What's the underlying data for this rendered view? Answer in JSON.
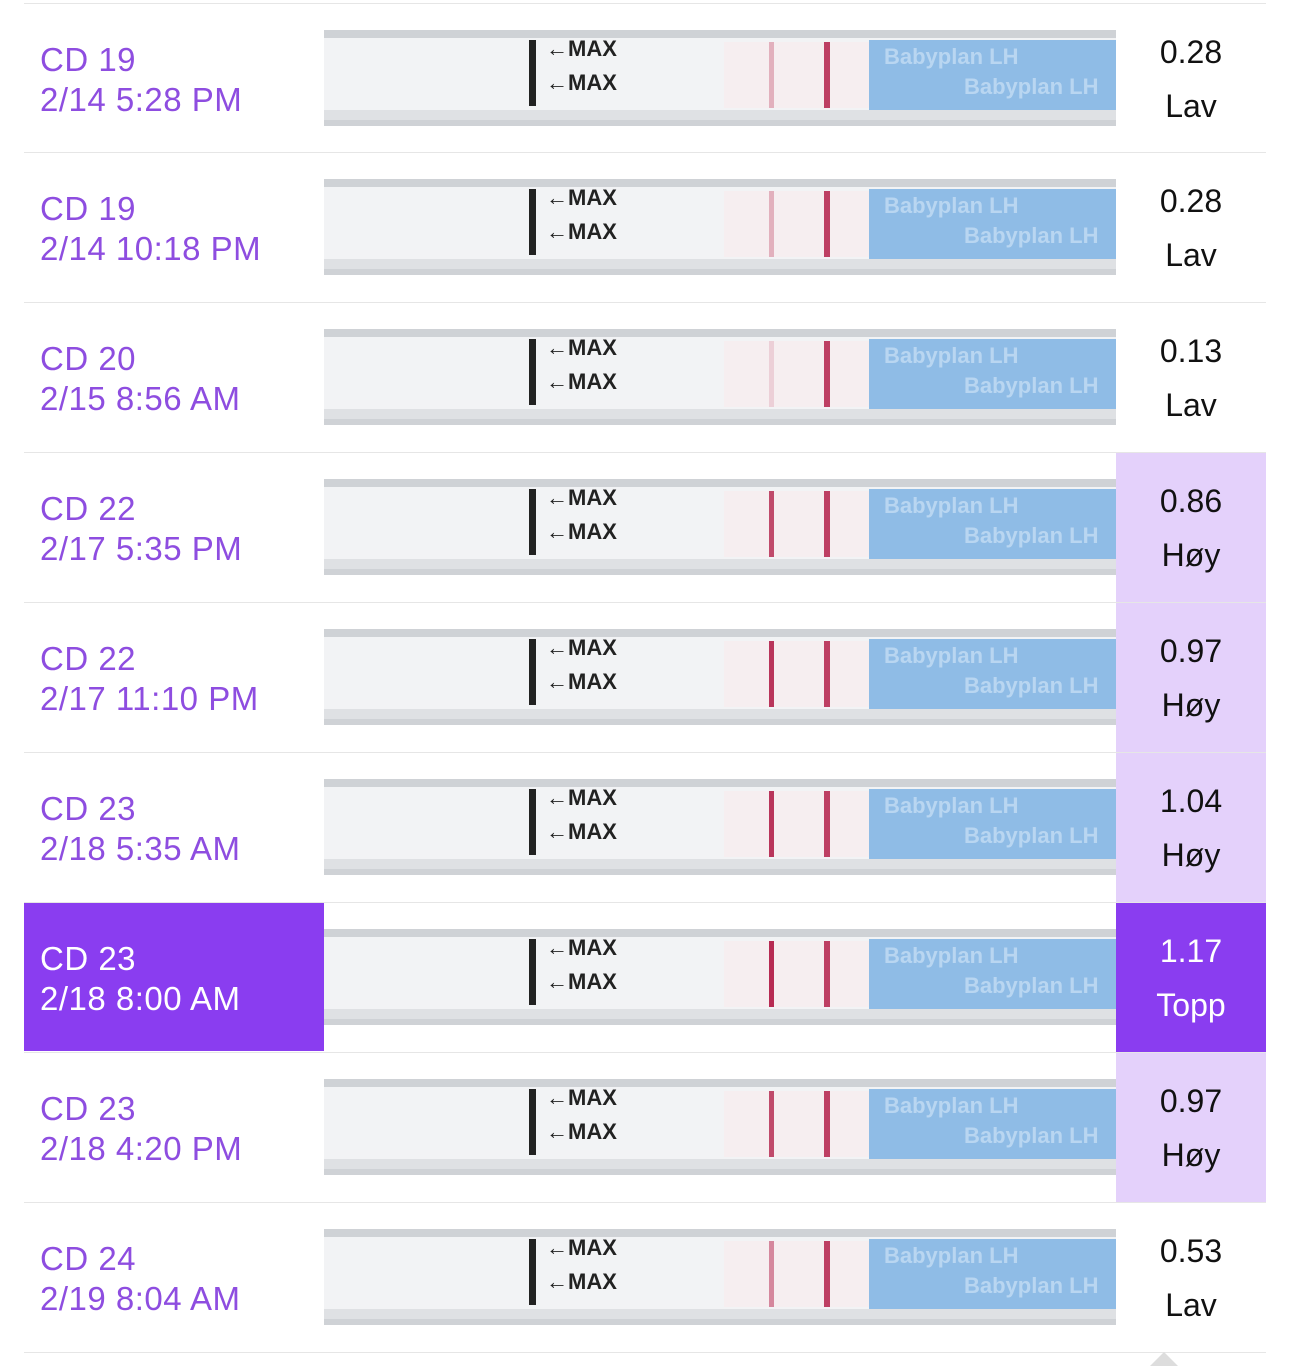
{
  "colors": {
    "accent": "#8a3df0",
    "date_text": "#8e4de0",
    "high_bg": "#e4d1fb",
    "strip_blue": "#8fbce6",
    "test_line": "#b3204a"
  },
  "strip": {
    "arrow_label": "←MAX",
    "brand": "Babyplan",
    "brand_suffix": "LH"
  },
  "tests": [
    {
      "cd": "CD 19",
      "datetime": "2/14 5:28 PM",
      "value": "0.28",
      "level": "Lav",
      "status": "low",
      "control_line": 0.85,
      "test_line": 0.3
    },
    {
      "cd": "CD 19",
      "datetime": "2/14 10:18 PM",
      "value": "0.28",
      "level": "Lav",
      "status": "low",
      "control_line": 0.85,
      "test_line": 0.3
    },
    {
      "cd": "CD 20",
      "datetime": "2/15 8:56 AM",
      "value": "0.13",
      "level": "Lav",
      "status": "low",
      "control_line": 0.85,
      "test_line": 0.15
    },
    {
      "cd": "CD 22",
      "datetime": "2/17 5:35 PM",
      "value": "0.86",
      "level": "Høy",
      "status": "high",
      "control_line": 0.85,
      "test_line": 0.8
    },
    {
      "cd": "CD 22",
      "datetime": "2/17 11:10 PM",
      "value": "0.97",
      "level": "Høy",
      "status": "high",
      "control_line": 0.85,
      "test_line": 0.9
    },
    {
      "cd": "CD 23",
      "datetime": "2/18 5:35 AM",
      "value": "1.04",
      "level": "Høy",
      "status": "high",
      "control_line": 0.85,
      "test_line": 0.9
    },
    {
      "cd": "CD 23",
      "datetime": "2/18 8:00 AM",
      "value": "1.17",
      "level": "Topp",
      "status": "peak",
      "selected": true,
      "control_line": 0.85,
      "test_line": 0.95
    },
    {
      "cd": "CD 23",
      "datetime": "2/18 4:20 PM",
      "value": "0.97",
      "level": "Høy",
      "status": "high",
      "control_line": 0.85,
      "test_line": 0.8
    },
    {
      "cd": "CD 24",
      "datetime": "2/19 8:04 AM",
      "value": "0.53",
      "level": "Lav",
      "status": "low",
      "control_line": 0.85,
      "test_line": 0.5
    }
  ]
}
